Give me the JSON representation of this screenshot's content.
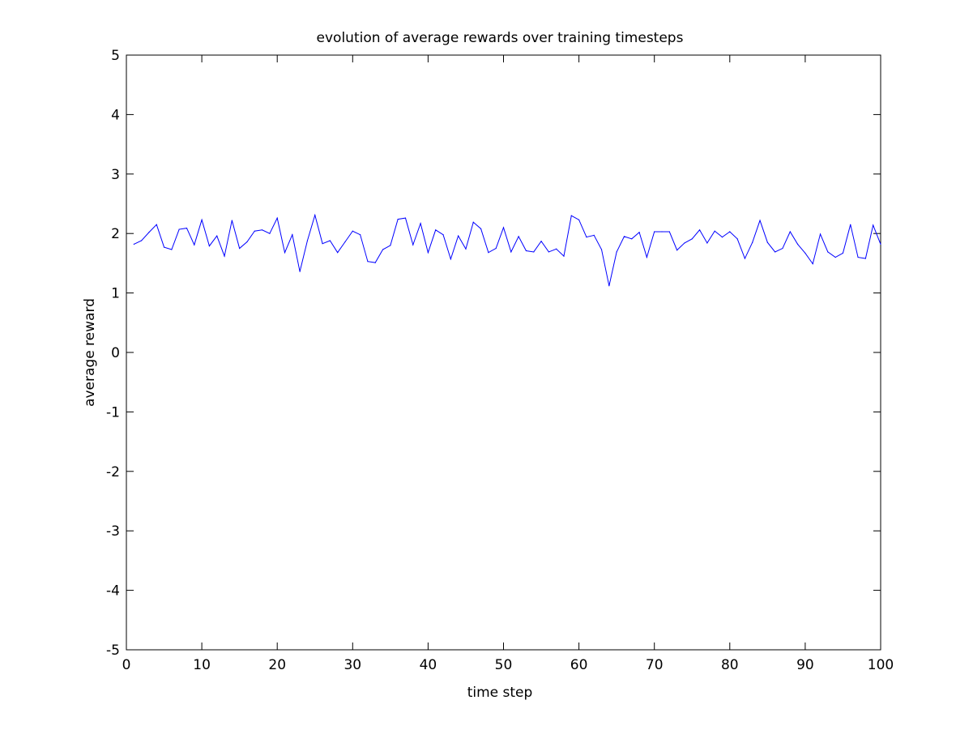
{
  "chart_data": {
    "type": "line",
    "title": "evolution of average rewards over training timesteps",
    "xlabel": "time step",
    "ylabel": "average reward",
    "xlim": [
      0,
      100
    ],
    "ylim": [
      -5,
      5
    ],
    "x_ticks": [
      "0",
      "10",
      "20",
      "30",
      "40",
      "50",
      "60",
      "70",
      "80",
      "90",
      "100"
    ],
    "y_ticks": [
      "-5",
      "-4",
      "-3",
      "-2",
      "-1",
      "0",
      "1",
      "2",
      "3",
      "4",
      "5"
    ],
    "grid": false,
    "line_color": "#0000ff",
    "x": [
      1,
      2,
      3,
      4,
      5,
      6,
      7,
      8,
      9,
      10,
      11,
      12,
      13,
      14,
      15,
      16,
      17,
      18,
      19,
      20,
      21,
      22,
      23,
      24,
      25,
      26,
      27,
      28,
      29,
      30,
      31,
      32,
      33,
      34,
      35,
      36,
      37,
      38,
      39,
      40,
      41,
      42,
      43,
      44,
      45,
      46,
      47,
      48,
      49,
      50,
      51,
      52,
      53,
      54,
      55,
      56,
      57,
      58,
      59,
      60,
      61,
      62,
      63,
      64,
      65,
      66,
      67,
      68,
      69,
      70,
      71,
      72,
      73,
      74,
      75,
      76,
      77,
      78,
      79,
      80,
      81,
      82,
      83,
      84,
      85,
      86,
      87,
      88,
      89,
      90,
      91,
      92,
      93,
      94,
      95,
      96,
      97,
      98,
      99,
      100
    ],
    "series": [
      {
        "values": [
          1.82,
          1.88,
          2.02,
          2.15,
          1.77,
          1.73,
          2.07,
          2.09,
          1.81,
          2.23,
          1.79,
          1.96,
          1.62,
          2.22,
          1.75,
          1.86,
          2.04,
          2.06,
          2.0,
          2.26,
          1.68,
          1.98,
          1.36,
          1.88,
          2.31,
          1.83,
          1.88,
          1.68,
          1.86,
          2.04,
          1.98,
          1.53,
          1.51,
          1.73,
          1.8,
          2.24,
          2.26,
          1.81,
          2.17,
          1.68,
          2.06,
          1.98,
          1.57,
          1.96,
          1.74,
          2.19,
          2.08,
          1.68,
          1.75,
          2.1,
          1.69,
          1.95,
          1.71,
          1.69,
          1.87,
          1.69,
          1.74,
          1.62,
          2.3,
          2.23,
          1.94,
          1.97,
          1.73,
          1.12,
          1.69,
          1.95,
          1.91,
          2.02,
          1.6,
          2.03,
          2.03,
          2.03,
          1.72,
          1.84,
          1.91,
          2.06,
          1.84,
          2.04,
          1.94,
          2.03,
          1.91,
          1.58,
          1.85,
          2.22,
          1.85,
          1.69,
          1.75,
          2.03,
          1.82,
          1.67,
          1.49,
          1.99,
          1.69,
          1.6,
          1.67,
          2.15,
          1.6,
          1.58,
          2.14,
          1.82
        ]
      }
    ]
  }
}
